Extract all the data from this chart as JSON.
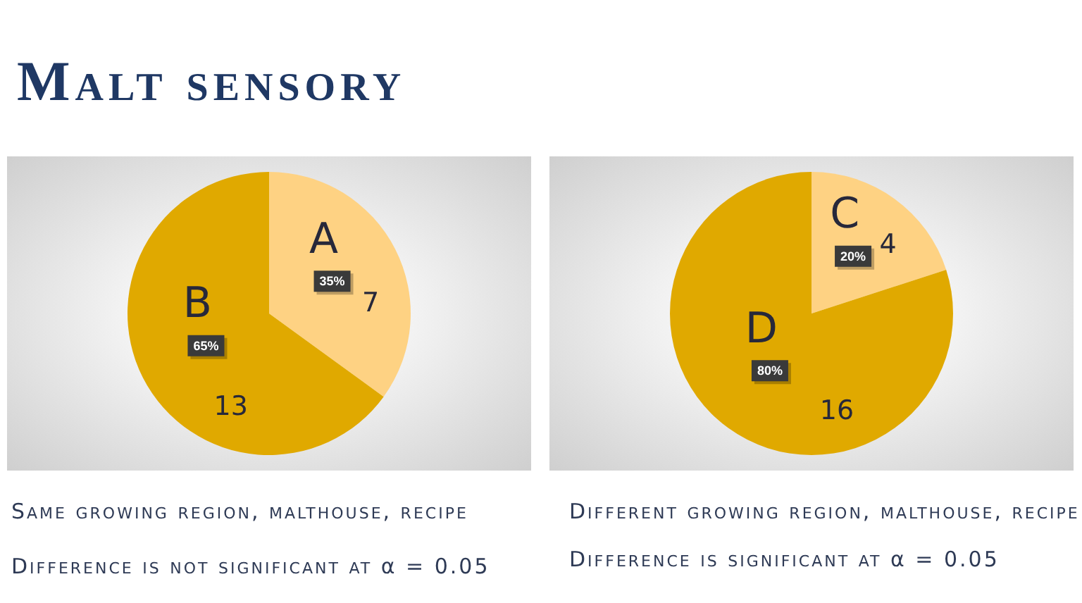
{
  "chart_data": [
    {
      "type": "pie",
      "title": "Malt sensory",
      "categories": [
        "A",
        "B"
      ],
      "values": [
        7,
        13
      ],
      "colors": [
        "#fed283",
        "#e0a900"
      ],
      "data_labels": true,
      "annotations": [
        {
          "text": "35%",
          "x": "A"
        },
        {
          "text": "65%",
          "x": "B"
        },
        "Same growing region, malthouse, recipe",
        "Difference is not significant at α = 0.05"
      ]
    },
    {
      "type": "pie",
      "categories": [
        "C",
        "D"
      ],
      "values": [
        4,
        16
      ],
      "colors": [
        "#fed283",
        "#e0a900"
      ],
      "data_labels": true,
      "annotations": [
        {
          "text": "20%",
          "x": "C"
        },
        {
          "text": "80%",
          "x": "D"
        },
        "Different growing region, malthouse, recipe",
        "Difference is significant at α = 0.05"
      ]
    }
  ]
}
